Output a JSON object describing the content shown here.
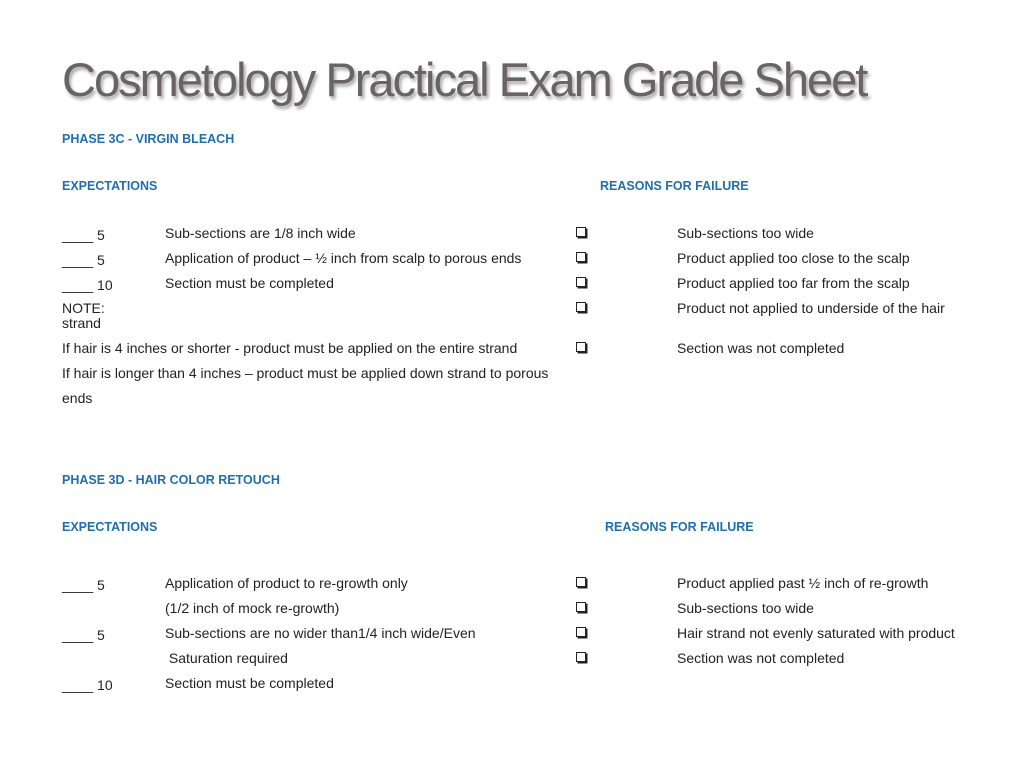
{
  "title": "Cosmetology Practical Exam Grade Sheet",
  "phase3c": {
    "heading": "PHASE 3C - VIRGIN BLEACH",
    "expectations_label": "EXPECTATIONS",
    "reasons_label": "REASONS FOR FAILURE",
    "items": [
      {
        "points": "____ 5",
        "text": "Sub-sections are 1/8 inch wide"
      },
      {
        "points": "____ 5",
        "text": "Application of product – ½ inch from scalp to porous ends"
      },
      {
        "points": "____ 10",
        "text": "Section must be completed"
      }
    ],
    "note_label": "NOTE:",
    "note_strand": "strand",
    "note_line1": "If hair is 4 inches or shorter -  product must be applied on the entire strand",
    "note_line2": "If hair is longer than 4 inches – product must be applied down strand to porous",
    "note_line3": "ends",
    "reasons": [
      "Sub-sections too wide",
      "Product applied too close to the scalp",
      "Product applied too far from the scalp",
      "Product not applied to underside of the hair",
      "Section was not completed"
    ]
  },
  "phase3d": {
    "heading": "PHASE 3D - HAIR COLOR RETOUCH",
    "expectations_label": "EXPECTATIONS",
    "reasons_label": "REASONS FOR FAILURE",
    "items": [
      {
        "points": "____ 5",
        "text": "Application of product to re-growth only"
      },
      {
        "points": "",
        "text": "(1/2 inch of mock re-growth)"
      },
      {
        "points": "____ 5",
        "text": "Sub-sections are no wider than1/4 inch wide/Even"
      },
      {
        "points": "",
        "text": " Saturation required"
      },
      {
        "points": "____ 10",
        "text": "Section must be completed"
      }
    ],
    "reasons": [
      "Product applied past ½ inch of re-growth",
      "Sub-sections too wide",
      "Hair strand not evenly saturated with product",
      "Section was not completed"
    ]
  }
}
